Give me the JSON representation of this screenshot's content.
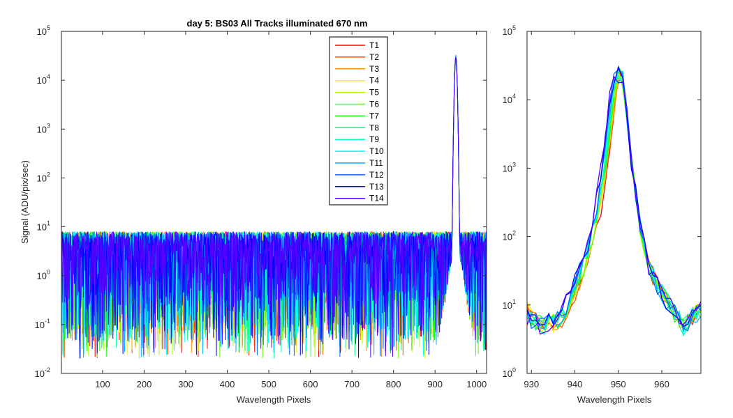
{
  "chart_data": [
    {
      "type": "line",
      "title": "day 5: BS03   All Tracks illuminated   670 nm",
      "xlabel": "Wavelength Pixels",
      "ylabel": "Signal (ADU/pix/sec)",
      "xlim": [
        1,
        1024
      ],
      "ylim": [
        0.01,
        100000
      ],
      "yscale": "log",
      "xticks": [
        100,
        200,
        300,
        400,
        500,
        600,
        700,
        800,
        900,
        1000
      ],
      "yticks": [
        {
          "value": 0.01,
          "base": "10",
          "exp": "-2"
        },
        {
          "value": 0.1,
          "base": "10",
          "exp": "-1"
        },
        {
          "value": 1,
          "base": "10",
          "exp": "0"
        },
        {
          "value": 10,
          "base": "10",
          "exp": "1"
        },
        {
          "value": 100,
          "base": "10",
          "exp": "2"
        },
        {
          "value": 1000,
          "base": "10",
          "exp": "3"
        },
        {
          "value": 10000,
          "base": "10",
          "exp": "4"
        },
        {
          "value": 100000,
          "base": "10",
          "exp": "5"
        }
      ],
      "grid": false,
      "legend_position": "top-center",
      "noise": {
        "x_range": [
          1,
          1024
        ],
        "typical_level": 1.5,
        "upper_envelope": 8,
        "lower_spikes_min": 0.02
      },
      "peak": {
        "x": 950,
        "y": 30000
      },
      "series": [
        {
          "name": "T1",
          "color": "#ff0000"
        },
        {
          "name": "T2",
          "color": "#ff4d00"
        },
        {
          "name": "T3",
          "color": "#ff9900"
        },
        {
          "name": "T4",
          "color": "#f2f200"
        },
        {
          "name": "T5",
          "color": "#b3ff00"
        },
        {
          "name": "T6",
          "color": "#66ff00"
        },
        {
          "name": "T7",
          "color": "#1aff1a"
        },
        {
          "name": "T8",
          "color": "#00ff80"
        },
        {
          "name": "T9",
          "color": "#00ffbf"
        },
        {
          "name": "T10",
          "color": "#00ffff"
        },
        {
          "name": "T11",
          "color": "#00b3ff"
        },
        {
          "name": "T12",
          "color": "#0066ff"
        },
        {
          "name": "T13",
          "color": "#0000ff"
        },
        {
          "name": "T14",
          "color": "#5500ff"
        }
      ]
    },
    {
      "type": "line",
      "title": "",
      "xlabel": "Wavelength Pixels",
      "ylabel": "",
      "xlim": [
        929,
        969
      ],
      "ylim": [
        1,
        100000
      ],
      "yscale": "log",
      "xticks": [
        930,
        940,
        950,
        960
      ],
      "yticks": [
        {
          "value": 1,
          "base": "10",
          "exp": "0"
        },
        {
          "value": 10,
          "base": "10",
          "exp": "1"
        },
        {
          "value": 100,
          "base": "10",
          "exp": "2"
        },
        {
          "value": 1000,
          "base": "10",
          "exp": "3"
        },
        {
          "value": 10000,
          "base": "10",
          "exp": "4"
        },
        {
          "value": 100000,
          "base": "10",
          "exp": "5"
        }
      ],
      "grid": false,
      "peak": {
        "x": 950,
        "y": 25000
      },
      "profile": {
        "x": [
          929,
          931,
          933,
          935,
          937,
          939,
          941,
          943,
          945,
          947,
          948,
          949,
          950,
          951,
          952,
          953,
          955,
          957,
          959,
          961,
          963,
          965,
          967,
          969
        ],
        "y": [
          7,
          6,
          5,
          6,
          7,
          12,
          25,
          60,
          200,
          1200,
          4000,
          15000,
          25000,
          20000,
          6000,
          1200,
          150,
          40,
          20,
          12,
          8,
          5,
          7,
          9
        ]
      }
    }
  ]
}
